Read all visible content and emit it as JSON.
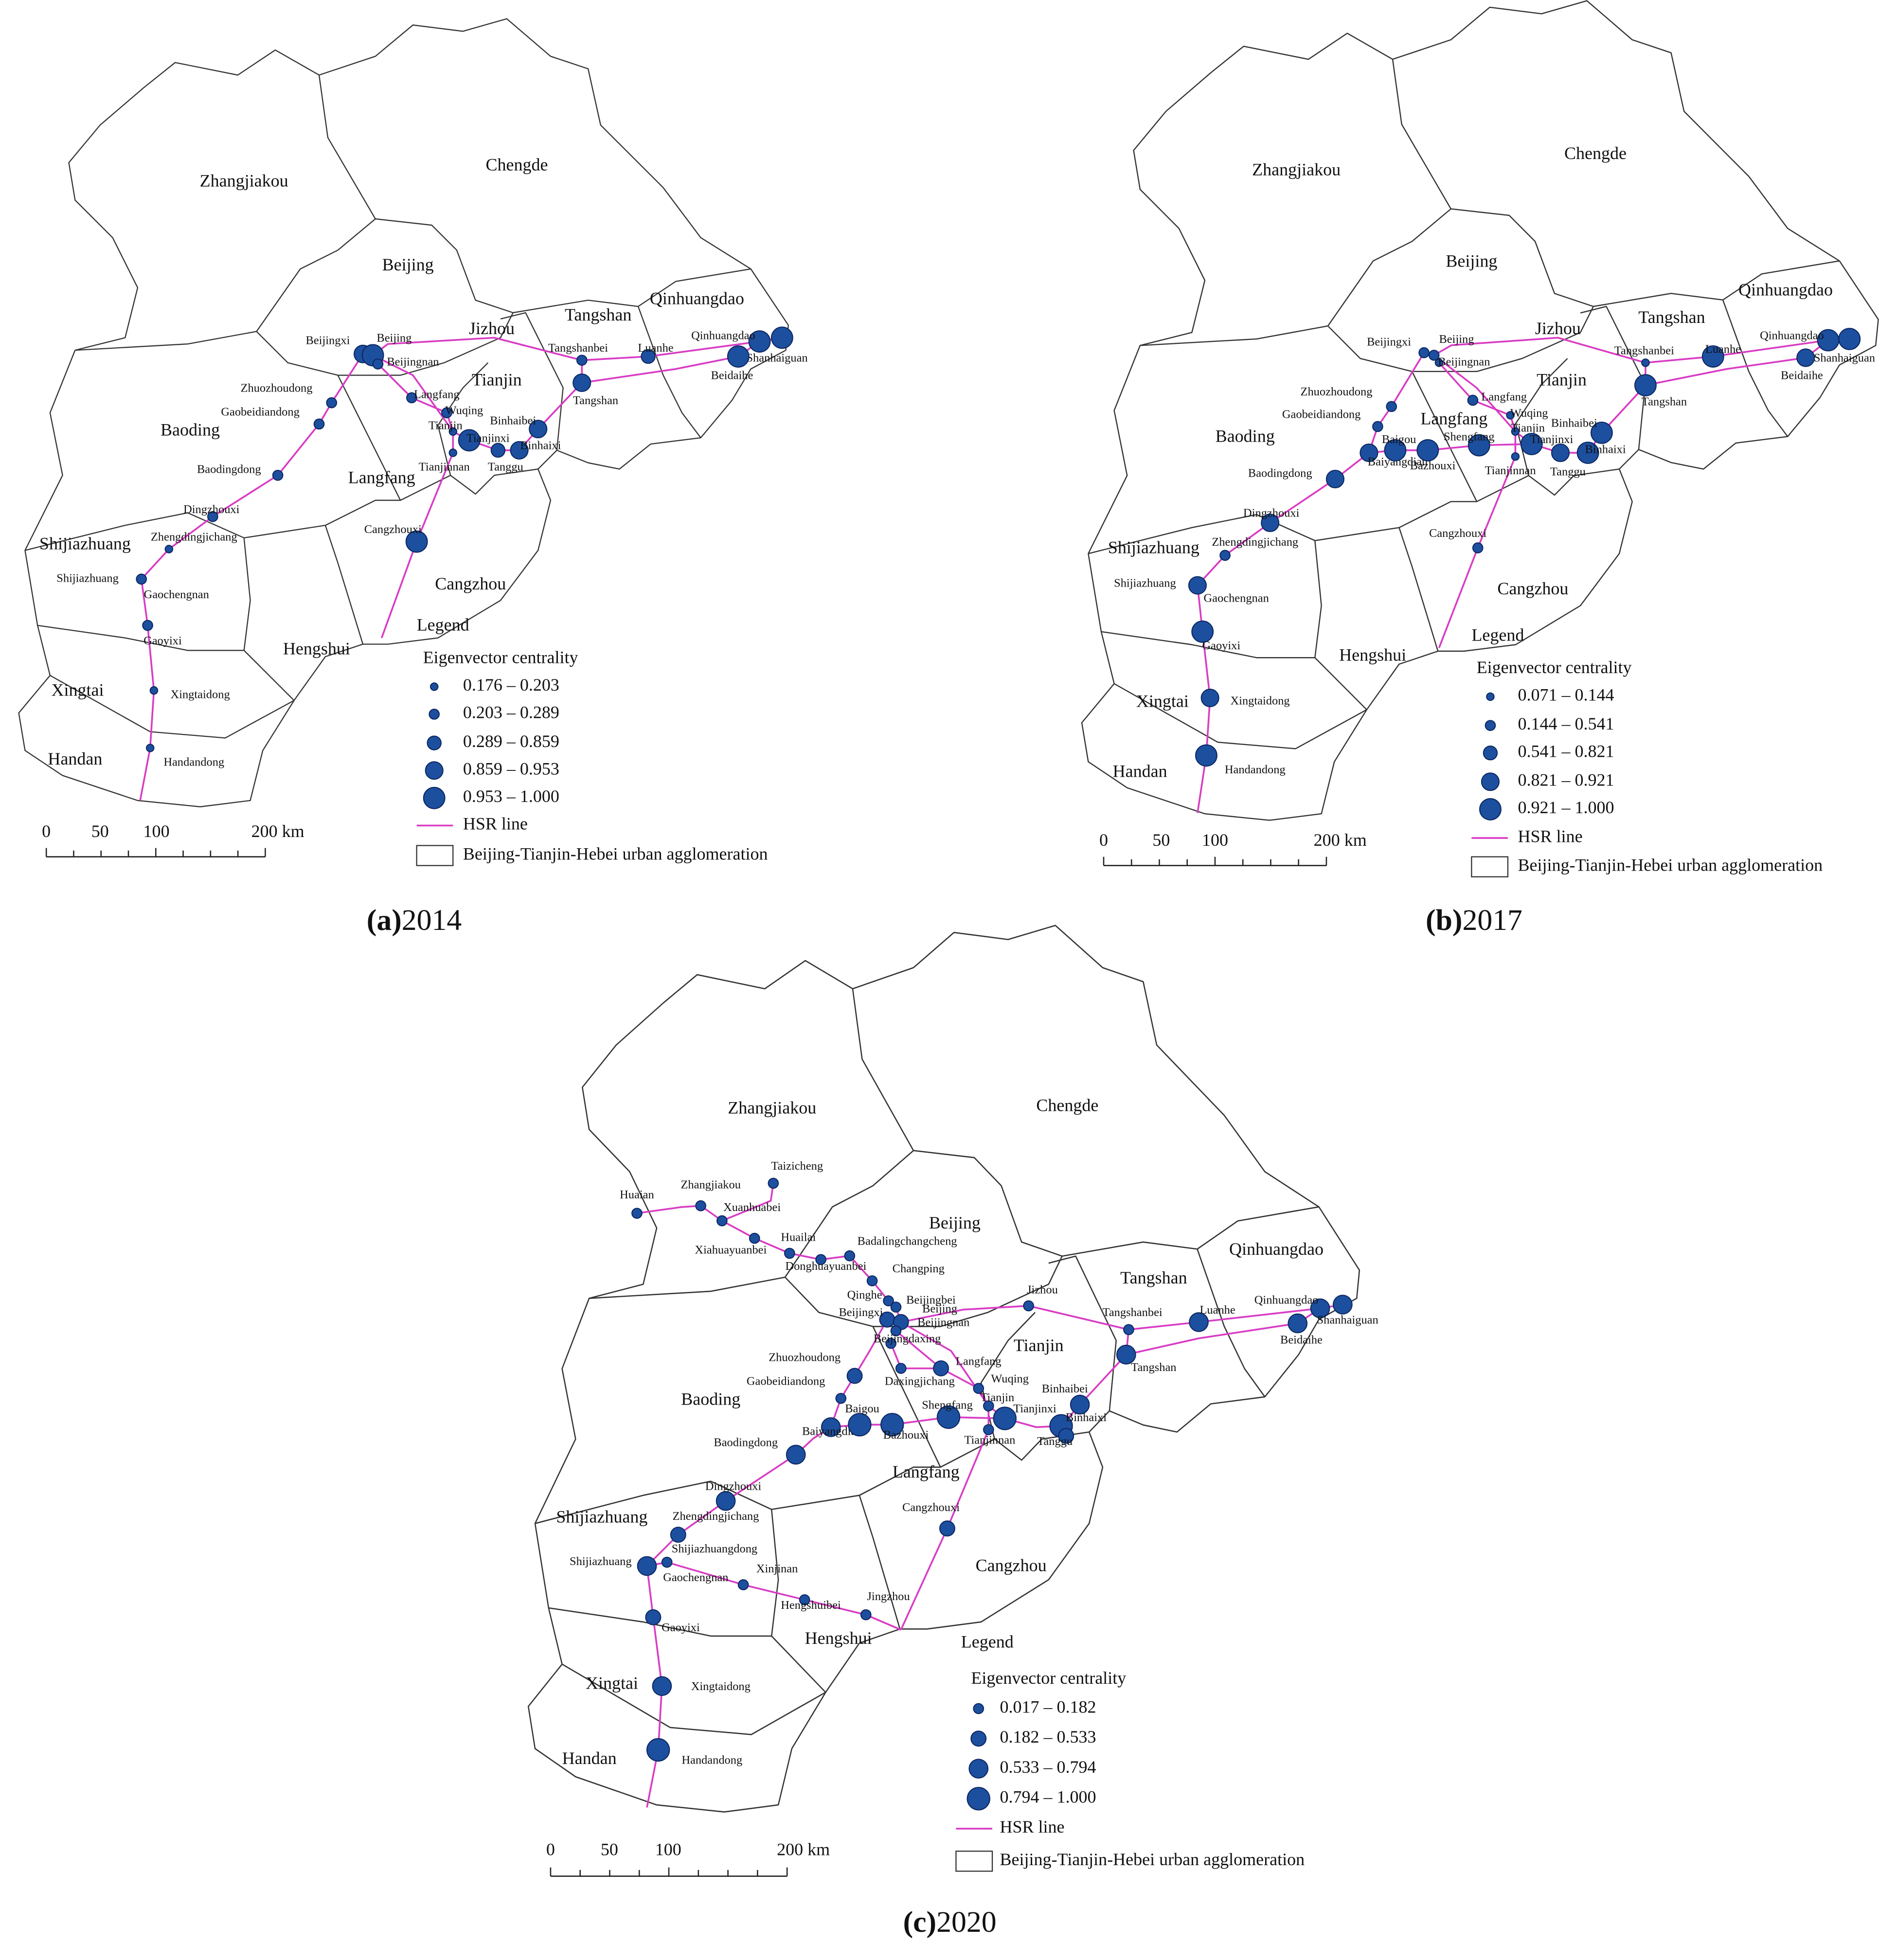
{
  "maps": [
    {
      "caption": {
        "label": "(a)",
        "year": "2014"
      },
      "regions": [
        "Zhangjiakou",
        "Chengde",
        "Beijing",
        "Qinhuangdao",
        "Tangshan",
        "Jizhou",
        "Tianjin",
        "Langfang",
        "Baoding",
        "Cangzhou",
        "Shijiazhuang",
        "Hengshui",
        "Xingtai",
        "Handan"
      ],
      "stations": [
        "Beijingxi",
        "Beijing",
        "Beijingnan",
        "Tangshanbei",
        "Luanhe",
        "Qinhuangdao",
        "Shanhaiguan",
        "Beidaihe",
        "Tangshan",
        "Zhuozhoudong",
        "Gaobeidiandong",
        "Langfang",
        "Wuqing",
        "Tianjin",
        "Tianjinxi",
        "Binhaibei",
        "Binhaixi",
        "Tanggu",
        "Tianjinnan",
        "Baodingdong",
        "Dingzhouxi",
        "Zhengdingjichang",
        "Shijiazhuang",
        "Gaochengnan",
        "Gaoyixi",
        "Xingtaidong",
        "Handandong",
        "Cangzhouxi"
      ],
      "legend": {
        "heading": "Legend",
        "title": "Eigenvector centrality",
        "classes": [
          "0.176 – 0.203",
          "0.203 – 0.289",
          "0.289 – 0.859",
          "0.859 – 0.953",
          "0.953 – 1.000"
        ],
        "line": "HSR line",
        "area": "Beijing-Tianjin-Hebei urban agglomeration"
      },
      "scale": [
        "0",
        "50",
        "100",
        "200 km"
      ]
    },
    {
      "caption": {
        "label": "(b)",
        "year": "2017"
      },
      "regions": [
        "Zhangjiakou",
        "Chengde",
        "Beijing",
        "Qinhuangdao",
        "Tangshan",
        "Jizhou",
        "Tianjin",
        "Langfang",
        "Baoding",
        "Cangzhou",
        "Shijiazhuang",
        "Hengshui",
        "Xingtai",
        "Handan"
      ],
      "stations": [
        "Beijingxi",
        "Beijing",
        "Beijingnan",
        "Tangshanbei",
        "Luanhe",
        "Qinhuangdao",
        "Shanhaiguan",
        "Beidaihe",
        "Tangshan",
        "Zhuozhoudong",
        "Gaobeidiandong",
        "Langfang",
        "Wuqing",
        "Tianjin",
        "Binhaibei",
        "Baiyangdian",
        "Baigou",
        "Bazhouxi",
        "Shengfang",
        "Tianjinxi",
        "Tianjinnan",
        "Binhaixi",
        "Tanggu",
        "Baodingdong",
        "Dingzhouxi",
        "Zhengdingjichang",
        "Shijiazhuang",
        "Gaochengnan",
        "Gaoyixi",
        "Xingtaidong",
        "Handandong",
        "Cangzhouxi"
      ],
      "legend": {
        "heading": "Legend",
        "title": "Eigenvector centrality",
        "classes": [
          "0.071 – 0.144",
          "0.144 – 0.541",
          "0.541 – 0.821",
          "0.821 – 0.921",
          "0.921 – 1.000"
        ],
        "line": "HSR line",
        "area": "Beijing-Tianjin-Hebei urban agglomeration"
      },
      "scale": [
        "0",
        "50",
        "100",
        "200 km"
      ]
    },
    {
      "caption": {
        "label": "(c)",
        "year": "2020"
      },
      "regions": [
        "Zhangjiakou",
        "Chengde",
        "Beijing",
        "Qinhuangdao",
        "Tangshan",
        "Tianjin",
        "Baoding",
        "Langfang",
        "Cangzhou",
        "Shijiazhuang",
        "Hengshui",
        "Xingtai",
        "Handan"
      ],
      "stations": [
        "Taizicheng",
        "Zhangjiakou",
        "Huaian",
        "Xuanhuabei",
        "Xiahuayuanbei",
        "Huailai",
        "Donghuayuanbei",
        "Badalingchangcheng",
        "Changping",
        "Qinghe",
        "Beijingbei",
        "Beijingxi",
        "Beijing",
        "Beijingnan",
        "Beijingdaxing",
        "Daxingjichang",
        "Langfang",
        "Jizhou",
        "Tangshanbei",
        "Luanhe",
        "Qinhuangdao",
        "Shanhaiguan",
        "Beidaihe",
        "Tangshan",
        "Zhuozhoudong",
        "Gaobeidiandong",
        "Wuqing",
        "Tianjin",
        "Binhaibei",
        "Baiyangdian",
        "Baigou",
        "Bazhouxi",
        "Shengfang",
        "Tianjinxi",
        "Tianjinnan",
        "Binhaixi",
        "Tanggu",
        "Baodingdong",
        "Dingzhouxi",
        "Zhengdingjichang",
        "Shijiazhuangdong",
        "Shijiazhuang",
        "Gaochengnan",
        "Xinjinan",
        "Hengshuibei",
        "Jingzhou",
        "Cangzhouxi",
        "Gaoyixi",
        "Xingtaidong",
        "Handandong"
      ],
      "legend": {
        "heading": "Legend",
        "title": "Eigenvector centrality",
        "classes": [
          "0.017 – 0.182",
          "0.182 – 0.533",
          "0.533 – 0.794",
          "0.794 – 1.000"
        ],
        "line": "HSR line",
        "area": "Beijing-Tianjin-Hebei urban agglomeration"
      },
      "scale": [
        "0",
        "50",
        "100",
        "200 km"
      ]
    }
  ]
}
